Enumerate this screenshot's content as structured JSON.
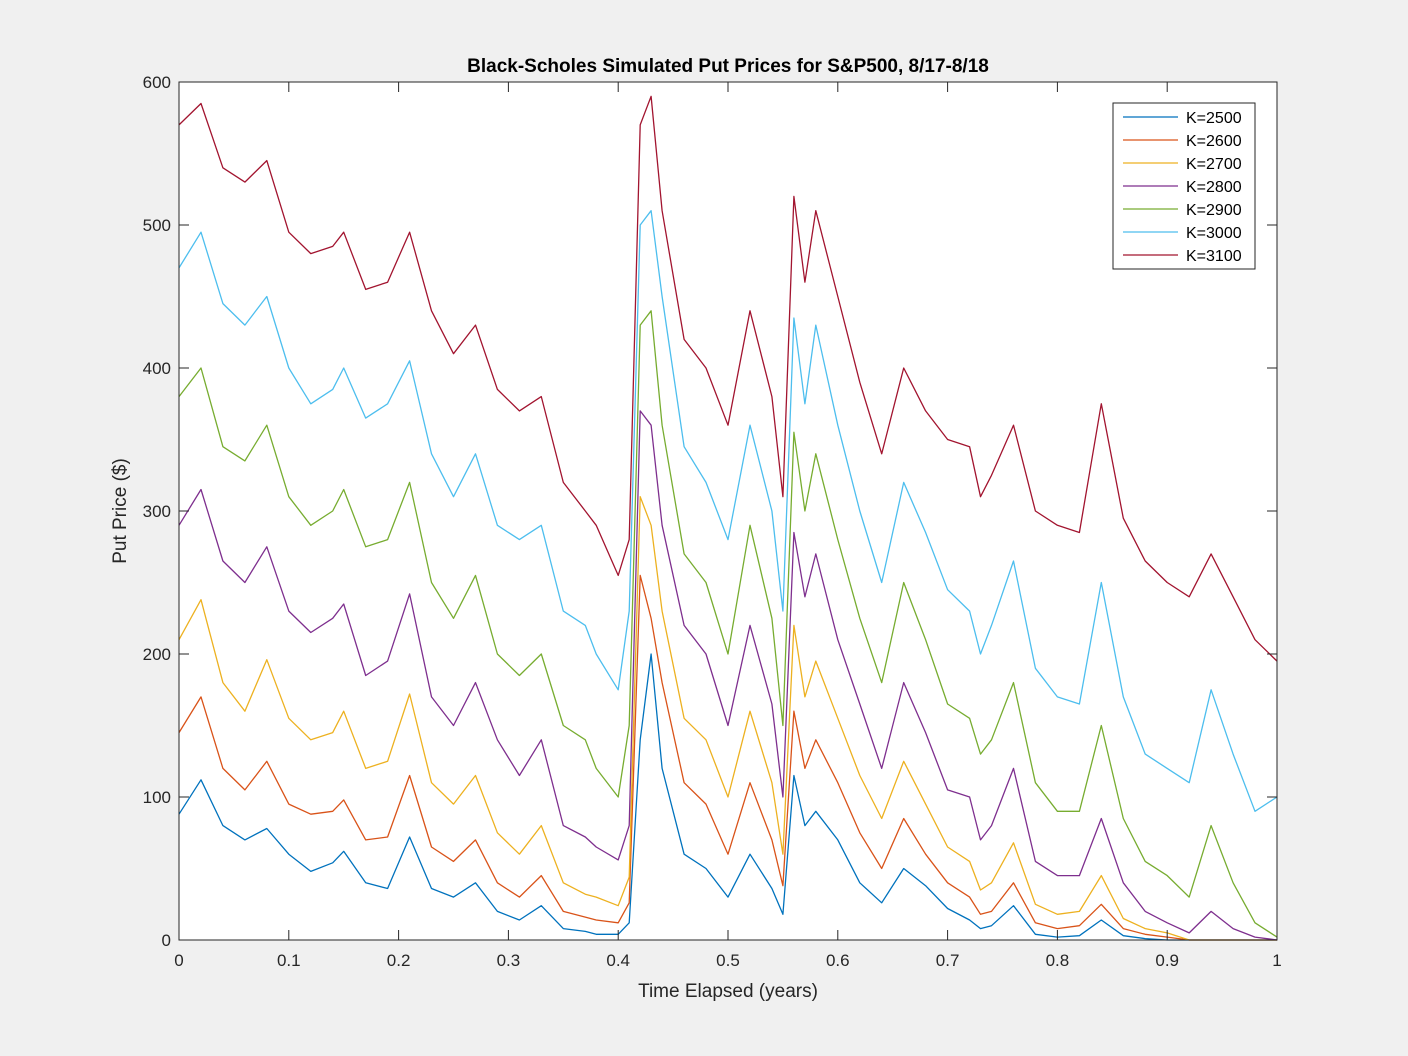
{
  "chart_data": {
    "type": "line",
    "title": "Black-Scholes Simulated Put Prices for S&P500, 8/17-8/18",
    "xlabel": "Time Elapsed (years)",
    "ylabel": "Put Price ($)",
    "xlim": [
      0,
      1
    ],
    "ylim": [
      0,
      600
    ],
    "xticks": [
      0,
      0.1,
      0.2,
      0.3,
      0.4,
      0.5,
      0.6,
      0.7,
      0.8,
      0.9,
      1
    ],
    "yticks": [
      0,
      100,
      200,
      300,
      400,
      500,
      600
    ],
    "grid": false,
    "legend_position": "top-right",
    "x": [
      0.0,
      0.02,
      0.04,
      0.06,
      0.08,
      0.1,
      0.12,
      0.14,
      0.15,
      0.17,
      0.19,
      0.21,
      0.23,
      0.25,
      0.27,
      0.29,
      0.31,
      0.33,
      0.35,
      0.37,
      0.38,
      0.4,
      0.41,
      0.42,
      0.43,
      0.44,
      0.46,
      0.48,
      0.5,
      0.52,
      0.54,
      0.55,
      0.56,
      0.57,
      0.58,
      0.6,
      0.62,
      0.64,
      0.66,
      0.68,
      0.7,
      0.72,
      0.73,
      0.74,
      0.76,
      0.78,
      0.8,
      0.82,
      0.84,
      0.86,
      0.88,
      0.9,
      0.92,
      0.94,
      0.96,
      0.98,
      1.0
    ],
    "series": [
      {
        "name": "K=2500",
        "color": "#0072bd",
        "values": [
          88,
          112,
          80,
          70,
          78,
          60,
          48,
          54,
          62,
          40,
          36,
          72,
          36,
          30,
          40,
          20,
          14,
          24,
          8,
          6,
          4,
          4,
          12,
          140,
          200,
          120,
          60,
          50,
          30,
          60,
          36,
          18,
          115,
          80,
          90,
          70,
          40,
          26,
          50,
          38,
          22,
          14,
          8,
          10,
          24,
          4,
          2,
          3,
          14,
          3,
          1,
          0,
          0,
          0,
          0,
          0,
          0
        ]
      },
      {
        "name": "K=2600",
        "color": "#d95319",
        "values": [
          145,
          170,
          120,
          105,
          125,
          95,
          88,
          90,
          98,
          70,
          72,
          115,
          65,
          55,
          70,
          40,
          30,
          45,
          20,
          16,
          14,
          12,
          26,
          255,
          225,
          180,
          110,
          95,
          60,
          110,
          70,
          38,
          160,
          120,
          140,
          110,
          75,
          50,
          85,
          60,
          40,
          30,
          18,
          20,
          40,
          12,
          8,
          10,
          25,
          8,
          4,
          2,
          0,
          0,
          0,
          0,
          0
        ]
      },
      {
        "name": "K=2700",
        "color": "#edb120",
        "values": [
          210,
          238,
          180,
          160,
          196,
          155,
          140,
          145,
          160,
          120,
          125,
          172,
          110,
          95,
          115,
          75,
          60,
          80,
          40,
          32,
          30,
          24,
          44,
          310,
          290,
          230,
          155,
          140,
          100,
          160,
          110,
          60,
          220,
          170,
          195,
          155,
          115,
          85,
          125,
          95,
          65,
          55,
          35,
          40,
          68,
          25,
          18,
          20,
          45,
          15,
          8,
          5,
          0,
          0,
          0,
          0,
          0
        ]
      },
      {
        "name": "K=2800",
        "color": "#7e2f8e",
        "values": [
          290,
          315,
          265,
          250,
          275,
          230,
          215,
          225,
          235,
          185,
          195,
          242,
          170,
          150,
          180,
          140,
          115,
          140,
          80,
          72,
          65,
          56,
          80,
          370,
          360,
          290,
          220,
          200,
          150,
          220,
          165,
          100,
          285,
          240,
          270,
          210,
          165,
          120,
          180,
          145,
          105,
          100,
          70,
          80,
          120,
          55,
          45,
          45,
          85,
          40,
          20,
          12,
          5,
          20,
          8,
          2,
          0
        ]
      },
      {
        "name": "K=2900",
        "color": "#77ac30",
        "values": [
          380,
          400,
          345,
          335,
          360,
          310,
          290,
          300,
          315,
          275,
          280,
          320,
          250,
          225,
          255,
          200,
          185,
          200,
          150,
          140,
          120,
          100,
          150,
          430,
          440,
          360,
          270,
          250,
          200,
          290,
          225,
          150,
          355,
          300,
          340,
          280,
          225,
          180,
          250,
          210,
          165,
          155,
          130,
          140,
          180,
          110,
          90,
          90,
          150,
          85,
          55,
          45,
          30,
          80,
          40,
          12,
          2
        ]
      },
      {
        "name": "K=3000",
        "color": "#4dbeee",
        "values": [
          470,
          495,
          445,
          430,
          450,
          400,
          375,
          385,
          400,
          365,
          375,
          405,
          340,
          310,
          340,
          290,
          280,
          290,
          230,
          220,
          200,
          175,
          230,
          500,
          510,
          450,
          345,
          320,
          280,
          360,
          300,
          230,
          435,
          375,
          430,
          360,
          300,
          250,
          320,
          285,
          245,
          230,
          200,
          220,
          265,
          190,
          170,
          165,
          250,
          170,
          130,
          120,
          110,
          175,
          130,
          90,
          100
        ]
      },
      {
        "name": "K=3100",
        "color": "#a2142f",
        "values": [
          570,
          585,
          540,
          530,
          545,
          495,
          480,
          485,
          495,
          455,
          460,
          495,
          440,
          410,
          430,
          385,
          370,
          380,
          320,
          300,
          290,
          255,
          280,
          570,
          590,
          510,
          420,
          400,
          360,
          440,
          380,
          310,
          520,
          460,
          510,
          450,
          390,
          340,
          400,
          370,
          350,
          345,
          310,
          325,
          360,
          300,
          290,
          285,
          375,
          295,
          265,
          250,
          240,
          270,
          240,
          210,
          195
        ]
      }
    ]
  }
}
